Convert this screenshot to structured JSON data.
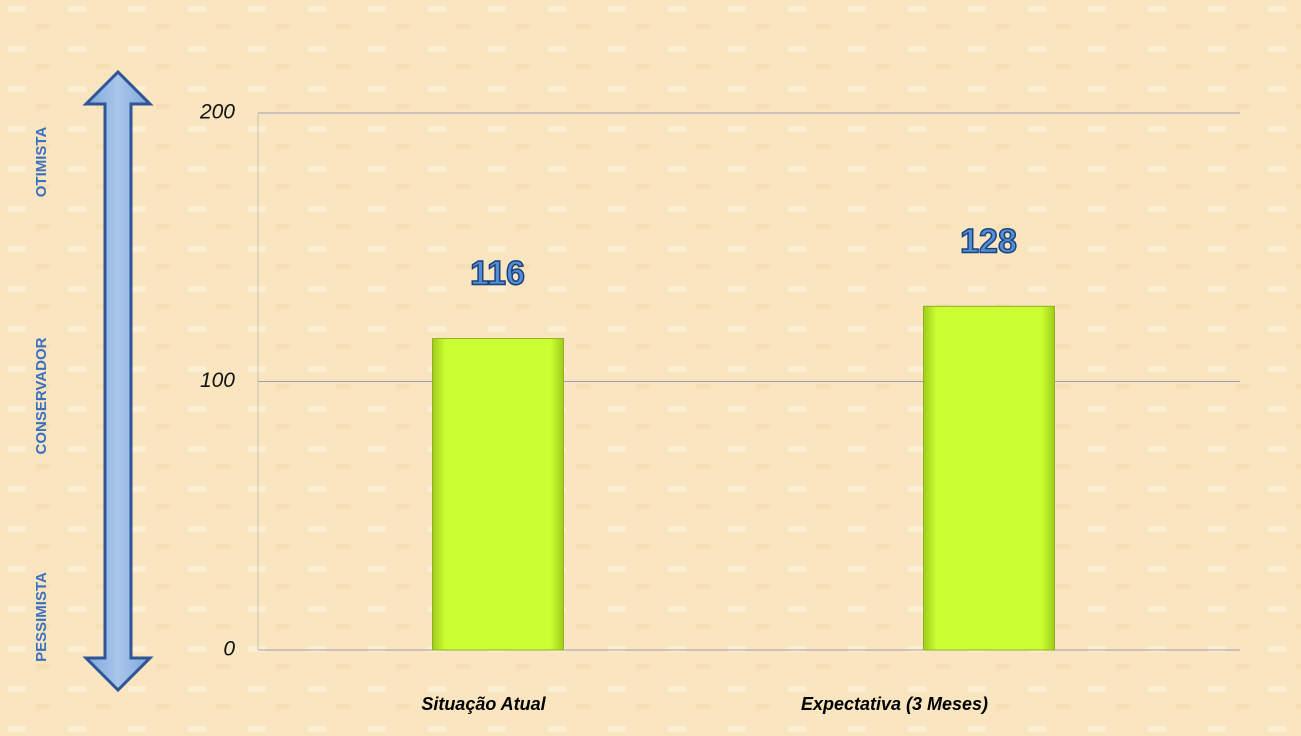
{
  "chart_data": {
    "type": "bar",
    "categories": [
      "Situação Atual",
      "Expectativa  (3 Meses)"
    ],
    "values": [
      116,
      128
    ],
    "color": "#ccff33",
    "ylim": [
      0,
      200
    ],
    "yticks": [
      0,
      100,
      200
    ],
    "grid": true,
    "annotations": [
      "OTIMISTA",
      "CONSERVADOR",
      "PESSIMISTA"
    ]
  }
}
